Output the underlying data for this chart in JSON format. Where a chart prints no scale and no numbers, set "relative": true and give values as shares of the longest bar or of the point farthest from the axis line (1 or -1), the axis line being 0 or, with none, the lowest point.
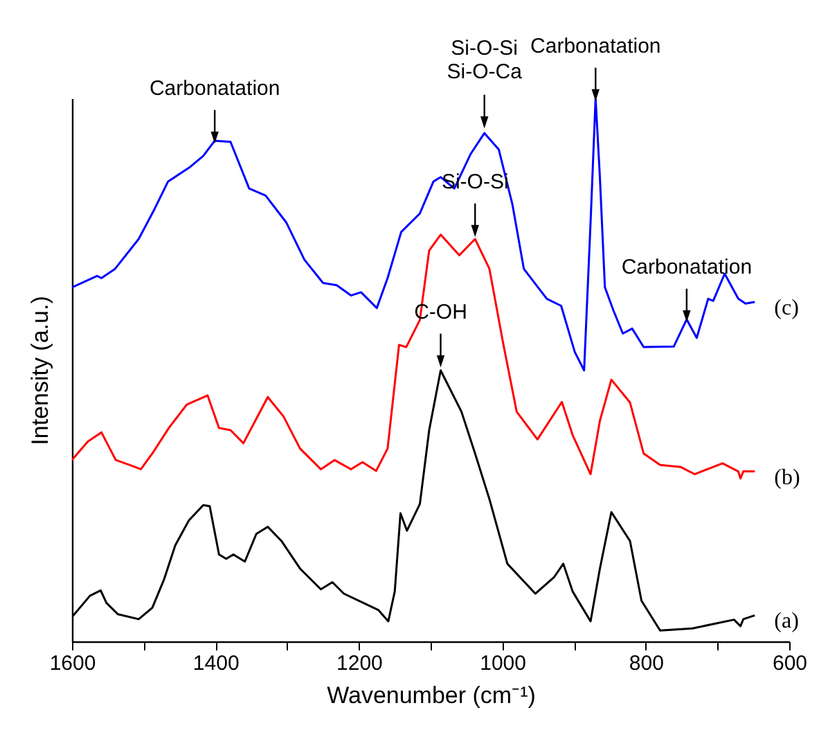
{
  "chart_data": {
    "type": "line",
    "relative": true,
    "xlabel": "Wavenumber (cm⁻¹)",
    "ylabel": "Intensity (a.u.)",
    "xlim": [
      1600,
      600
    ],
    "xticks": [
      1600,
      {
        "value": 1500,
        "label": null
      },
      1400,
      {
        "value": 1300,
        "label": null
      },
      1200,
      {
        "value": 1100,
        "label": null
      },
      1000,
      {
        "value": 900,
        "label": null
      },
      800,
      {
        "value": 700,
        "label": null
      },
      600
    ],
    "grid": false,
    "line_style": "solid",
    "marker": "none",
    "series": [
      {
        "name": "(a)",
        "color": "#000000",
        "x": [
          1600,
          1575,
          1560,
          1552,
          1536,
          1507,
          1488,
          1472,
          1456,
          1437,
          1417,
          1408,
          1395,
          1385,
          1375,
          1359,
          1343,
          1327,
          1308,
          1282,
          1253,
          1237,
          1221,
          1173,
          1159,
          1150,
          1142,
          1133,
          1115,
          1102,
          1086,
          1057,
          1038,
          1018,
          993,
          954,
          928,
          915,
          902,
          877,
          864,
          848,
          822,
          806,
          780,
          735,
          677,
          668,
          664,
          648
        ],
        "values": [
          0.045,
          0.084,
          0.094,
          0.071,
          0.05,
          0.041,
          0.062,
          0.113,
          0.177,
          0.223,
          0.251,
          0.249,
          0.16,
          0.152,
          0.16,
          0.147,
          0.198,
          0.211,
          0.185,
          0.134,
          0.096,
          0.109,
          0.088,
          0.058,
          0.037,
          0.092,
          0.236,
          0.204,
          0.253,
          0.389,
          0.499,
          0.423,
          0.346,
          0.262,
          0.143,
          0.088,
          0.118,
          0.143,
          0.092,
          0.037,
          0.134,
          0.238,
          0.185,
          0.075,
          0.02,
          0.024,
          0.04,
          0.028,
          0.041,
          0.048
        ]
      },
      {
        "name": "(b)",
        "color": "#ff0000",
        "x": [
          1600,
          1578,
          1559,
          1539,
          1520,
          1504,
          1488,
          1465,
          1440,
          1411,
          1395,
          1379,
          1361,
          1343,
          1327,
          1305,
          1282,
          1253,
          1234,
          1211,
          1195,
          1176,
          1160,
          1144,
          1134,
          1115,
          1102,
          1086,
          1060,
          1038,
          1018,
          999,
          980,
          951,
          917,
          902,
          877,
          864,
          848,
          822,
          803,
          780,
          751,
          732,
          693,
          671,
          668,
          664,
          648
        ],
        "values": [
          0.334,
          0.368,
          0.385,
          0.334,
          0.325,
          0.317,
          0.346,
          0.393,
          0.436,
          0.453,
          0.393,
          0.389,
          0.365,
          0.41,
          0.45,
          0.414,
          0.355,
          0.317,
          0.334,
          0.317,
          0.33,
          0.314,
          0.355,
          0.546,
          0.542,
          0.592,
          0.72,
          0.749,
          0.711,
          0.741,
          0.686,
          0.55,
          0.423,
          0.372,
          0.441,
          0.38,
          0.308,
          0.406,
          0.482,
          0.44,
          0.346,
          0.325,
          0.321,
          0.308,
          0.328,
          0.313,
          0.3,
          0.313,
          0.313
        ]
      },
      {
        "name": "(c)",
        "color": "#0000ff",
        "x": [
          1600,
          1565,
          1559,
          1540,
          1507,
          1485,
          1466,
          1437,
          1417,
          1401,
          1379,
          1353,
          1330,
          1301,
          1276,
          1250,
          1231,
          1211,
          1197,
          1175,
          1160,
          1141,
          1115,
          1096,
          1086,
          1067,
          1044,
          1025,
          1005,
          986,
          970,
          938,
          918,
          899,
          886,
          877,
          870,
          864,
          857,
          845,
          832,
          819,
          803,
          761,
          743,
          729,
          713,
          706,
          690,
          671,
          661,
          648
        ],
        "values": [
          0.652,
          0.673,
          0.669,
          0.686,
          0.741,
          0.796,
          0.847,
          0.872,
          0.894,
          0.922,
          0.92,
          0.834,
          0.821,
          0.771,
          0.703,
          0.66,
          0.656,
          0.637,
          0.643,
          0.614,
          0.669,
          0.754,
          0.788,
          0.847,
          0.855,
          0.834,
          0.898,
          0.936,
          0.906,
          0.805,
          0.686,
          0.631,
          0.618,
          0.533,
          0.499,
          0.771,
          1.0,
          0.855,
          0.652,
          0.609,
          0.567,
          0.576,
          0.542,
          0.543,
          0.593,
          0.559,
          0.631,
          0.627,
          0.677,
          0.631,
          0.622,
          0.625
        ]
      }
    ],
    "annotations": [
      {
        "text": "Carbonatation",
        "x": 1401,
        "y": 0.922
      },
      {
        "text": "Si-O-Si\nSi-O-Ca",
        "x": 1025,
        "y": 0.95
      },
      {
        "text": "Carbonatation",
        "x": 870,
        "y": 1.0
      },
      {
        "text": "Si-O-Si",
        "x": 1038,
        "y": 0.75
      },
      {
        "text": "C-OH",
        "x": 1086,
        "y": 0.51
      },
      {
        "text": "Carbonatation",
        "x": 743,
        "y": 0.593
      }
    ]
  }
}
